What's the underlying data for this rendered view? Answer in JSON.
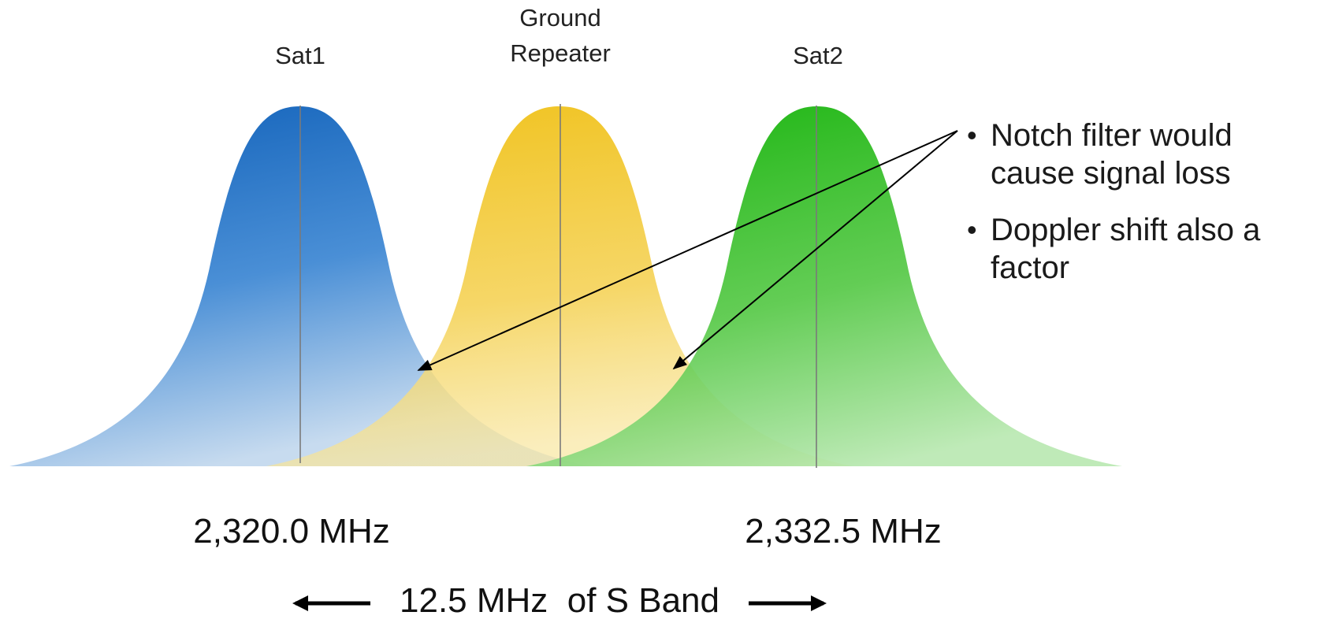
{
  "labels": {
    "sat1": "Sat1",
    "ground_line1": "Ground",
    "ground_line2": "Repeater",
    "sat2": "Sat2"
  },
  "bullets": [
    "Notch filter would cause signal loss",
    "Doppler shift also a factor"
  ],
  "frequencies": {
    "left": "2,320.0 MHz",
    "right": "2,332.5 MHz"
  },
  "band_label": "12.5 MHz  of S Band",
  "colors": {
    "blue": "#1565c0",
    "yellow": "#f2c31f",
    "green": "#22b518"
  }
}
